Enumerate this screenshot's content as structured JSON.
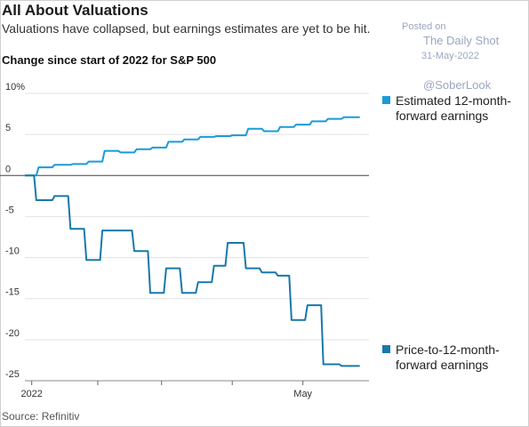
{
  "header": {
    "title": "All About Valuations",
    "subtitle": "Valuations have collapsed, but earnings estimates are yet to be hit.",
    "chart_label": "Change since start of 2022 for S&P 500"
  },
  "watermark": {
    "posted": "Posted on",
    "site": "The Daily Shot",
    "date": "31-May-2022",
    "handle": "@SoberLook"
  },
  "footer": {
    "source": "Source: Refinitiv"
  },
  "colors": {
    "earnings": "#1a9bd7",
    "pe": "#1778aa",
    "axis": "#444444",
    "grid": "#e3e3e3"
  },
  "chart_data": {
    "type": "line",
    "title": "Change since start of 2022 for S&P 500",
    "xlabel": "",
    "ylabel": "",
    "x_ticks": [
      {
        "label": "2022",
        "date": "2022-01-03"
      },
      {
        "label": "",
        "date": "2022-02-01"
      },
      {
        "label": "",
        "date": "2022-03-01"
      },
      {
        "label": "",
        "date": "2022-04-01"
      },
      {
        "label": "May",
        "date": "2022-05-02"
      }
    ],
    "xlim": [
      "2021-12-31",
      "2022-05-31"
    ],
    "y_ticks": [
      10,
      5,
      0,
      -5,
      -10,
      -15,
      -20,
      -25
    ],
    "y_tick_labels": [
      "10%",
      "5",
      "0",
      "-5",
      "-10",
      "-15",
      "-20",
      "-25"
    ],
    "ylim": [
      -25,
      10
    ],
    "grid": true,
    "legend_position": "right",
    "series": [
      {
        "name": "Estimated 12-month-forward earnings",
        "points": [
          [
            "2021-12-31",
            0
          ],
          [
            "2022-01-05",
            0
          ],
          [
            "2022-01-06",
            1.0
          ],
          [
            "2022-01-12",
            1.0
          ],
          [
            "2022-01-13",
            1.3
          ],
          [
            "2022-01-20",
            1.3
          ],
          [
            "2022-01-21",
            1.4
          ],
          [
            "2022-01-27",
            1.4
          ],
          [
            "2022-01-28",
            1.7
          ],
          [
            "2022-02-03",
            1.7
          ],
          [
            "2022-02-04",
            3.0
          ],
          [
            "2022-02-10",
            3.0
          ],
          [
            "2022-02-11",
            2.8
          ],
          [
            "2022-02-17",
            2.8
          ],
          [
            "2022-02-18",
            3.2
          ],
          [
            "2022-02-24",
            3.2
          ],
          [
            "2022-02-25",
            3.4
          ],
          [
            "2022-03-03",
            3.4
          ],
          [
            "2022-03-04",
            4.1
          ],
          [
            "2022-03-10",
            4.1
          ],
          [
            "2022-03-11",
            4.4
          ],
          [
            "2022-03-17",
            4.4
          ],
          [
            "2022-03-18",
            4.7
          ],
          [
            "2022-03-24",
            4.7
          ],
          [
            "2022-03-25",
            4.8
          ],
          [
            "2022-03-31",
            4.8
          ],
          [
            "2022-04-01",
            4.9
          ],
          [
            "2022-04-07",
            4.9
          ],
          [
            "2022-04-08",
            5.7
          ],
          [
            "2022-04-14",
            5.7
          ],
          [
            "2022-04-15",
            5.4
          ],
          [
            "2022-04-21",
            5.4
          ],
          [
            "2022-04-22",
            5.9
          ],
          [
            "2022-04-28",
            5.9
          ],
          [
            "2022-04-29",
            6.2
          ],
          [
            "2022-05-05",
            6.2
          ],
          [
            "2022-05-06",
            6.6
          ],
          [
            "2022-05-12",
            6.6
          ],
          [
            "2022-05-13",
            6.9
          ],
          [
            "2022-05-19",
            6.9
          ],
          [
            "2022-05-20",
            7.1
          ],
          [
            "2022-05-27",
            7.1
          ]
        ]
      },
      {
        "name": "Price-to-12-month-forward earnings",
        "points": [
          [
            "2021-12-31",
            0
          ],
          [
            "2022-01-04",
            0
          ],
          [
            "2022-01-05",
            -3.0
          ],
          [
            "2022-01-12",
            -3.0
          ],
          [
            "2022-01-13",
            -2.5
          ],
          [
            "2022-01-19",
            -2.5
          ],
          [
            "2022-01-20",
            -6.5
          ],
          [
            "2022-01-26",
            -6.5
          ],
          [
            "2022-01-27",
            -10.3
          ],
          [
            "2022-02-02",
            -10.3
          ],
          [
            "2022-02-03",
            -6.7
          ],
          [
            "2022-02-16",
            -6.7
          ],
          [
            "2022-02-17",
            -9.2
          ],
          [
            "2022-02-23",
            -9.2
          ],
          [
            "2022-02-24",
            -14.3
          ],
          [
            "2022-03-02",
            -14.3
          ],
          [
            "2022-03-03",
            -11.3
          ],
          [
            "2022-03-09",
            -11.3
          ],
          [
            "2022-03-10",
            -14.3
          ],
          [
            "2022-03-16",
            -14.3
          ],
          [
            "2022-03-17",
            -13.0
          ],
          [
            "2022-03-23",
            -13.0
          ],
          [
            "2022-03-24",
            -11.0
          ],
          [
            "2022-03-29",
            -11.0
          ],
          [
            "2022-03-30",
            -8.2
          ],
          [
            "2022-04-06",
            -8.2
          ],
          [
            "2022-04-07",
            -11.3
          ],
          [
            "2022-04-13",
            -11.3
          ],
          [
            "2022-04-14",
            -11.8
          ],
          [
            "2022-04-20",
            -11.8
          ],
          [
            "2022-04-21",
            -12.2
          ],
          [
            "2022-04-26",
            -12.2
          ],
          [
            "2022-04-27",
            -17.6
          ],
          [
            "2022-05-03",
            -17.6
          ],
          [
            "2022-05-04",
            -15.8
          ],
          [
            "2022-05-10",
            -15.8
          ],
          [
            "2022-05-11",
            -23.0
          ],
          [
            "2022-05-18",
            -23.0
          ],
          [
            "2022-05-19",
            -23.2
          ],
          [
            "2022-05-27",
            -23.2
          ]
        ]
      }
    ]
  }
}
